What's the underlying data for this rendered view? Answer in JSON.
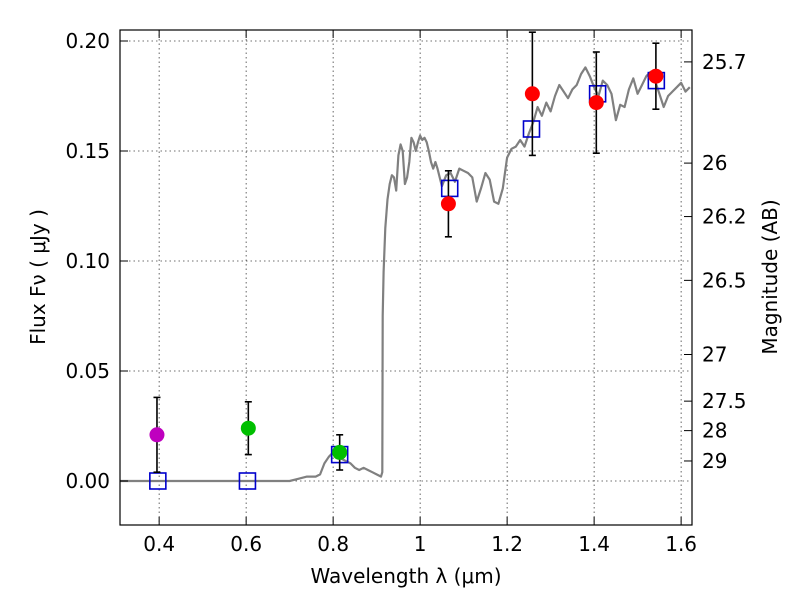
{
  "chart_data": {
    "type": "scatter",
    "title": "",
    "xlabel": "Wavelength  λ (μm)",
    "ylabel": "Flux  Fν  ( μJy )",
    "y2label": "Magnitude (AB)",
    "xlim": [
      0.31,
      1.625
    ],
    "ylim": [
      -0.02,
      0.205
    ],
    "grid": true,
    "x_ticks": [
      0.4,
      0.6,
      0.8,
      1.0,
      1.2,
      1.4,
      1.6
    ],
    "x_tick_labels": [
      "0.4",
      "0.6",
      "0.8",
      "1",
      "1.2",
      "1.4",
      "1.6"
    ],
    "y_ticks": [
      0.0,
      0.05,
      0.1,
      0.15,
      0.2
    ],
    "y_tick_labels": [
      "0.00",
      "0.05",
      "0.10",
      "0.15",
      "0.20"
    ],
    "y2_ticks": [
      {
        "label": "25.7",
        "flux": 0.1905
      },
      {
        "label": "26",
        "flux": 0.1445
      },
      {
        "label": "26.2",
        "flux": 0.1202
      },
      {
        "label": "26.5",
        "flux": 0.0912
      },
      {
        "label": "27",
        "flux": 0.0575
      },
      {
        "label": "27.5",
        "flux": 0.0363
      },
      {
        "label": "28",
        "flux": 0.0229
      },
      {
        "label": "29",
        "flux": 0.0091
      }
    ],
    "colors": {
      "model": "#808080",
      "model_points": "#0000cc",
      "magenta": "#bf00bf",
      "green": "#00bf00",
      "red": "#ff0000",
      "errorbar": "#000000"
    },
    "model_spectrum": {
      "name": "",
      "x": [
        0.31,
        0.5,
        0.7,
        0.72,
        0.74,
        0.76,
        0.77,
        0.78,
        0.79,
        0.8,
        0.81,
        0.815,
        0.82,
        0.83,
        0.84,
        0.85,
        0.86,
        0.87,
        0.88,
        0.89,
        0.9,
        0.91,
        0.913,
        0.914,
        0.916,
        0.92,
        0.925,
        0.93,
        0.935,
        0.94,
        0.945,
        0.95,
        0.955,
        0.96,
        0.965,
        0.97,
        0.975,
        0.98,
        0.985,
        0.99,
        0.995,
        1.0,
        1.005,
        1.01,
        1.015,
        1.02,
        1.025,
        1.03,
        1.035,
        1.04,
        1.05,
        1.06,
        1.07,
        1.08,
        1.09,
        1.1,
        1.11,
        1.12,
        1.13,
        1.14,
        1.15,
        1.16,
        1.17,
        1.18,
        1.19,
        1.2,
        1.21,
        1.22,
        1.23,
        1.24,
        1.25,
        1.26,
        1.27,
        1.28,
        1.29,
        1.3,
        1.31,
        1.32,
        1.33,
        1.34,
        1.35,
        1.36,
        1.37,
        1.38,
        1.39,
        1.4,
        1.41,
        1.42,
        1.43,
        1.44,
        1.45,
        1.46,
        1.47,
        1.48,
        1.49,
        1.5,
        1.51,
        1.52,
        1.53,
        1.54,
        1.55,
        1.56,
        1.57,
        1.58,
        1.59,
        1.6,
        1.61,
        1.62
      ],
      "y": [
        0.0,
        0.0,
        0.0,
        0.001,
        0.002,
        0.002,
        0.003,
        0.008,
        0.011,
        0.013,
        0.012,
        0.011,
        0.01,
        0.009,
        0.008,
        0.006,
        0.005,
        0.006,
        0.005,
        0.004,
        0.003,
        0.002,
        0.004,
        0.075,
        0.095,
        0.115,
        0.128,
        0.135,
        0.139,
        0.138,
        0.132,
        0.148,
        0.153,
        0.15,
        0.135,
        0.138,
        0.145,
        0.156,
        0.154,
        0.15,
        0.154,
        0.157,
        0.155,
        0.156,
        0.154,
        0.15,
        0.145,
        0.142,
        0.145,
        0.142,
        0.134,
        0.139,
        0.14,
        0.136,
        0.142,
        0.141,
        0.14,
        0.138,
        0.127,
        0.133,
        0.14,
        0.137,
        0.127,
        0.126,
        0.133,
        0.147,
        0.151,
        0.152,
        0.155,
        0.152,
        0.158,
        0.163,
        0.17,
        0.166,
        0.172,
        0.168,
        0.175,
        0.18,
        0.177,
        0.174,
        0.178,
        0.18,
        0.185,
        0.188,
        0.184,
        0.179,
        0.175,
        0.182,
        0.18,
        0.176,
        0.164,
        0.171,
        0.17,
        0.178,
        0.183,
        0.176,
        0.18,
        0.184,
        0.186,
        0.182,
        0.176,
        0.17,
        0.175,
        0.177,
        0.179,
        0.181,
        0.177,
        0.179
      ]
    },
    "model_points": [
      {
        "x": 0.397,
        "y": 0.0
      },
      {
        "x": 0.603,
        "y": 0.0
      },
      {
        "x": 0.815,
        "y": 0.012
      },
      {
        "x": 1.068,
        "y": 0.133
      },
      {
        "x": 1.256,
        "y": 0.16
      },
      {
        "x": 1.408,
        "y": 0.176
      },
      {
        "x": 1.543,
        "y": 0.182
      }
    ],
    "observed": [
      {
        "x": 0.395,
        "y": 0.021,
        "err": 0.017,
        "color": "magenta"
      },
      {
        "x": 0.605,
        "y": 0.024,
        "err": 0.012,
        "color": "green"
      },
      {
        "x": 0.815,
        "y": 0.013,
        "err": 0.008,
        "color": "green"
      },
      {
        "x": 1.065,
        "y": 0.126,
        "err": 0.015,
        "color": "red"
      },
      {
        "x": 1.258,
        "y": 0.176,
        "err": 0.028,
        "color": "red"
      },
      {
        "x": 1.405,
        "y": 0.172,
        "err": 0.023,
        "color": "red"
      },
      {
        "x": 1.542,
        "y": 0.184,
        "err": 0.015,
        "color": "red"
      }
    ]
  }
}
